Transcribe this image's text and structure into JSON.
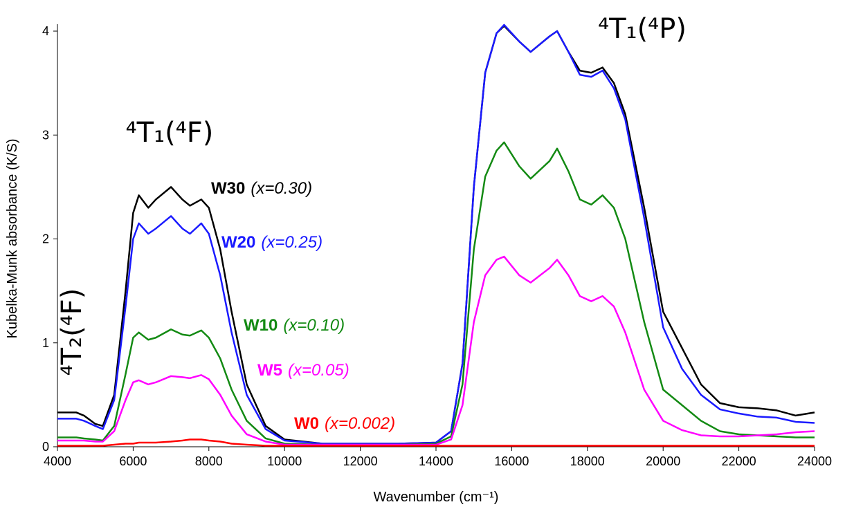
{
  "chart_data": {
    "type": "line",
    "x_label": "Wavenumber (cm⁻¹)",
    "y_label": "Kubelka-Munk absorbance (K/S)",
    "xlim": [
      4000,
      24000
    ],
    "ylim": [
      0,
      4
    ],
    "xticks": [
      4000,
      6000,
      8000,
      10000,
      12000,
      14000,
      16000,
      18000,
      20000,
      22000,
      24000
    ],
    "yticks": [
      0,
      1,
      2,
      3,
      4
    ],
    "grid": false,
    "annotations": [
      "⁴T₁(⁴F)",
      "⁴T₁(⁴P)",
      "⁴T₂(⁴F)"
    ],
    "x": [
      4000,
      4500,
      4700,
      5000,
      5200,
      5500,
      5800,
      6000,
      6150,
      6400,
      6600,
      7000,
      7300,
      7500,
      7800,
      8000,
      8300,
      8600,
      9000,
      9500,
      10000,
      11000,
      12000,
      13000,
      14000,
      14400,
      14700,
      15000,
      15300,
      15600,
      15800,
      16200,
      16500,
      17000,
      17200,
      17500,
      17800,
      18100,
      18400,
      18700,
      19000,
      19500,
      20000,
      20500,
      21000,
      21500,
      22000,
      22500,
      23000,
      23500,
      24000
    ],
    "series": [
      {
        "name": "W30",
        "composition": "(x=0.30)",
        "color": "#000000",
        "values": [
          0.33,
          0.33,
          0.3,
          0.22,
          0.2,
          0.5,
          1.5,
          2.25,
          2.42,
          2.3,
          2.38,
          2.5,
          2.38,
          2.32,
          2.38,
          2.3,
          1.9,
          1.3,
          0.6,
          0.2,
          0.07,
          0.03,
          0.03,
          0.03,
          0.04,
          0.15,
          0.8,
          2.5,
          3.6,
          3.98,
          4.05,
          3.9,
          3.8,
          3.95,
          4.0,
          3.8,
          3.62,
          3.6,
          3.65,
          3.5,
          3.2,
          2.3,
          1.3,
          0.95,
          0.6,
          0.42,
          0.38,
          0.37,
          0.35,
          0.3,
          0.33
        ]
      },
      {
        "name": "W20",
        "composition": "(x=0.25)",
        "color": "#1a1aff",
        "values": [
          0.27,
          0.27,
          0.25,
          0.2,
          0.17,
          0.45,
          1.35,
          2.0,
          2.15,
          2.05,
          2.1,
          2.22,
          2.1,
          2.05,
          2.15,
          2.05,
          1.65,
          1.1,
          0.5,
          0.17,
          0.06,
          0.03,
          0.03,
          0.03,
          0.04,
          0.15,
          0.8,
          2.5,
          3.6,
          3.98,
          4.06,
          3.9,
          3.8,
          3.95,
          4.0,
          3.8,
          3.58,
          3.56,
          3.62,
          3.45,
          3.15,
          2.2,
          1.15,
          0.75,
          0.5,
          0.36,
          0.32,
          0.29,
          0.28,
          0.24,
          0.23
        ]
      },
      {
        "name": "W10",
        "composition": "(x=0.10)",
        "color": "#138a13",
        "values": [
          0.09,
          0.09,
          0.08,
          0.07,
          0.06,
          0.2,
          0.7,
          1.05,
          1.1,
          1.03,
          1.05,
          1.13,
          1.08,
          1.07,
          1.12,
          1.05,
          0.85,
          0.55,
          0.25,
          0.08,
          0.03,
          0.02,
          0.02,
          0.02,
          0.03,
          0.1,
          0.6,
          1.9,
          2.6,
          2.85,
          2.93,
          2.7,
          2.58,
          2.75,
          2.87,
          2.65,
          2.38,
          2.33,
          2.42,
          2.3,
          2.0,
          1.2,
          0.55,
          0.4,
          0.25,
          0.15,
          0.12,
          0.11,
          0.1,
          0.09,
          0.09
        ]
      },
      {
        "name": "W5",
        "composition": "(x=0.05)",
        "color": "#ff00ff",
        "values": [
          0.06,
          0.06,
          0.06,
          0.05,
          0.05,
          0.15,
          0.45,
          0.62,
          0.64,
          0.6,
          0.62,
          0.68,
          0.67,
          0.66,
          0.69,
          0.65,
          0.5,
          0.3,
          0.12,
          0.05,
          0.02,
          0.02,
          0.02,
          0.02,
          0.02,
          0.07,
          0.4,
          1.2,
          1.65,
          1.8,
          1.83,
          1.65,
          1.58,
          1.72,
          1.8,
          1.65,
          1.45,
          1.4,
          1.45,
          1.35,
          1.1,
          0.55,
          0.25,
          0.16,
          0.11,
          0.1,
          0.1,
          0.11,
          0.12,
          0.14,
          0.15
        ]
      },
      {
        "name": "W0",
        "composition": "(x=0.002)",
        "color": "#ff0000",
        "values": [
          0.01,
          0.01,
          0.01,
          0.01,
          0.01,
          0.02,
          0.03,
          0.03,
          0.04,
          0.04,
          0.04,
          0.05,
          0.06,
          0.07,
          0.07,
          0.06,
          0.05,
          0.03,
          0.02,
          0.01,
          0.01,
          0.01,
          0.01,
          0.01,
          0.01,
          0.01,
          0.01,
          0.01,
          0.01,
          0.01,
          0.01,
          0.01,
          0.01,
          0.01,
          0.01,
          0.01,
          0.01,
          0.01,
          0.01,
          0.01,
          0.01,
          0.01,
          0.01,
          0.01,
          0.01,
          0.01,
          0.01,
          0.01,
          0.01,
          0.01,
          0.01
        ]
      }
    ]
  }
}
